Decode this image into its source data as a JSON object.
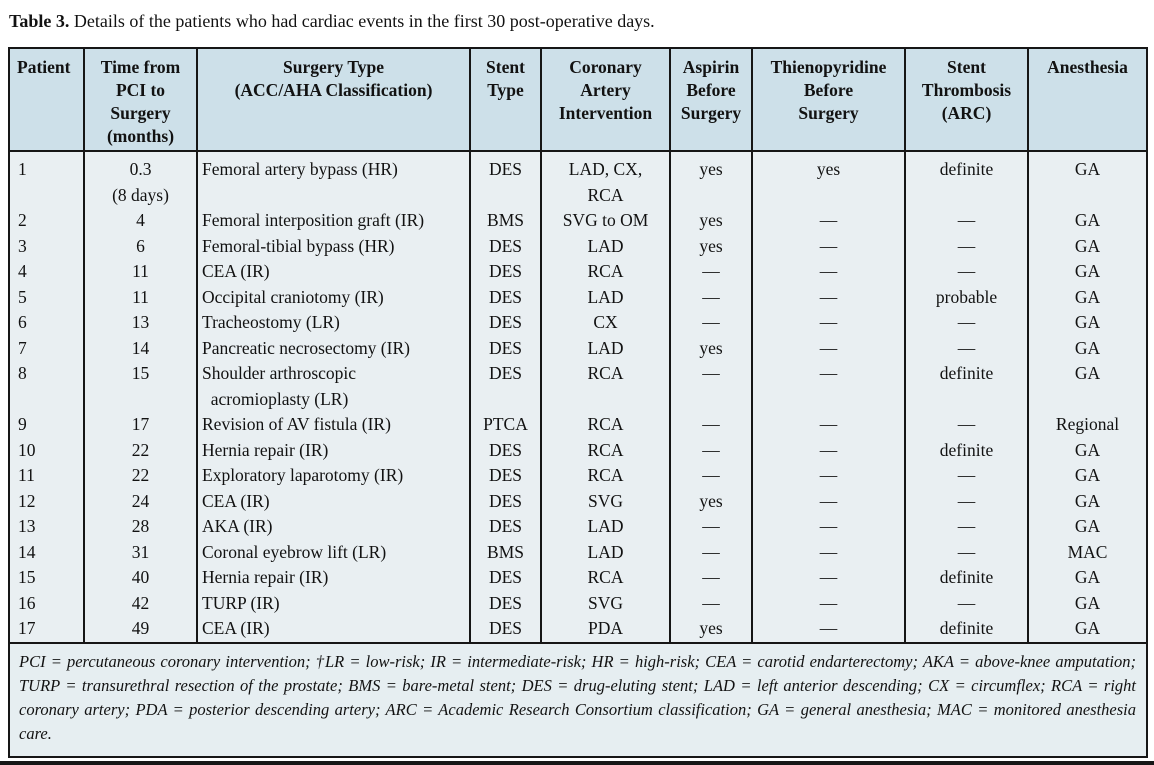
{
  "caption": {
    "label": "Table 3.",
    "text": "Details of the patients who had cardiac events in the first 30 post-operative days."
  },
  "colors": {
    "header_bg": "#cde0e9",
    "body_bg": "#e9eff2",
    "footnote_bg": "#e6eef1",
    "border": "#161616"
  },
  "table": {
    "columns": [
      "Patient",
      "Time from\nPCI to\nSurgery\n(months)",
      "Surgery Type\n(ACC/AHA Classification)",
      "Stent\nType",
      "Coronary\nArtery\nIntervention",
      "Aspirin\nBefore\nSurgery",
      "Thienopyridine\nBefore\nSurgery",
      "Stent\nThrombosis\n(ARC)",
      "Anesthesia"
    ],
    "rows": [
      [
        "1",
        "0.3\n(8 days)",
        "Femoral artery bypass (HR)",
        "DES",
        "LAD, CX,\nRCA",
        "yes",
        "yes",
        "definite",
        "GA"
      ],
      [
        "2",
        "4",
        "Femoral interposition graft (IR)",
        "BMS",
        "SVG to OM",
        "yes",
        "—",
        "—",
        "GA"
      ],
      [
        "3",
        "6",
        "Femoral-tibial bypass (HR)",
        "DES",
        "LAD",
        "yes",
        "—",
        "—",
        "GA"
      ],
      [
        "4",
        "11",
        "CEA (IR)",
        "DES",
        "RCA",
        "—",
        "—",
        "—",
        "GA"
      ],
      [
        "5",
        "11",
        "Occipital craniotomy (IR)",
        "DES",
        "LAD",
        "—",
        "—",
        "probable",
        "GA"
      ],
      [
        "6",
        "13",
        "Tracheostomy (LR)",
        "DES",
        "CX",
        "—",
        "—",
        "—",
        "GA"
      ],
      [
        "7",
        "14",
        "Pancreatic necrosectomy (IR)",
        "DES",
        "LAD",
        "yes",
        "—",
        "—",
        "GA"
      ],
      [
        "8",
        "15",
        "Shoulder arthroscopic\n  acromioplasty (LR)",
        "DES",
        "RCA",
        "—",
        "—",
        "definite",
        "GA"
      ],
      [
        "9",
        "17",
        "Revision of AV fistula (IR)",
        "PTCA",
        "RCA",
        "—",
        "—",
        "—",
        "Regional"
      ],
      [
        "10",
        "22",
        "Hernia repair (IR)",
        "DES",
        "RCA",
        "—",
        "—",
        "definite",
        "GA"
      ],
      [
        "11",
        "22",
        "Exploratory laparotomy (IR)",
        "DES",
        "RCA",
        "—",
        "—",
        "—",
        "GA"
      ],
      [
        "12",
        "24",
        "CEA (IR)",
        "DES",
        "SVG",
        "yes",
        "—",
        "—",
        "GA"
      ],
      [
        "13",
        "28",
        "AKA (IR)",
        "DES",
        "LAD",
        "—",
        "—",
        "—",
        "GA"
      ],
      [
        "14",
        "31",
        "Coronal eyebrow lift (LR)",
        "BMS",
        "LAD",
        "—",
        "—",
        "—",
        "MAC"
      ],
      [
        "15",
        "40",
        "Hernia repair (IR)",
        "DES",
        "RCA",
        "—",
        "—",
        "definite",
        "GA"
      ],
      [
        "16",
        "42",
        "TURP (IR)",
        "DES",
        "SVG",
        "—",
        "—",
        "—",
        "GA"
      ],
      [
        "17",
        "49",
        "CEA (IR)",
        "DES",
        "PDA",
        "yes",
        "—",
        "definite",
        "GA"
      ]
    ],
    "footnote": "PCI = percutaneous coronary intervention; †LR = low-risk; IR = intermediate-risk; HR = high-risk; CEA = carotid endarterectomy; AKA = above-knee amputation; TURP = transurethral resection of the prostate; BMS = bare-metal stent; DES = drug-eluting stent; LAD = left anterior descending; CX = circumflex; RCA = right coronary artery; PDA = posterior descending artery; ARC = Academic Research Consortium classification; GA = general anesthesia; MAC = monitored anesthesia care."
  }
}
